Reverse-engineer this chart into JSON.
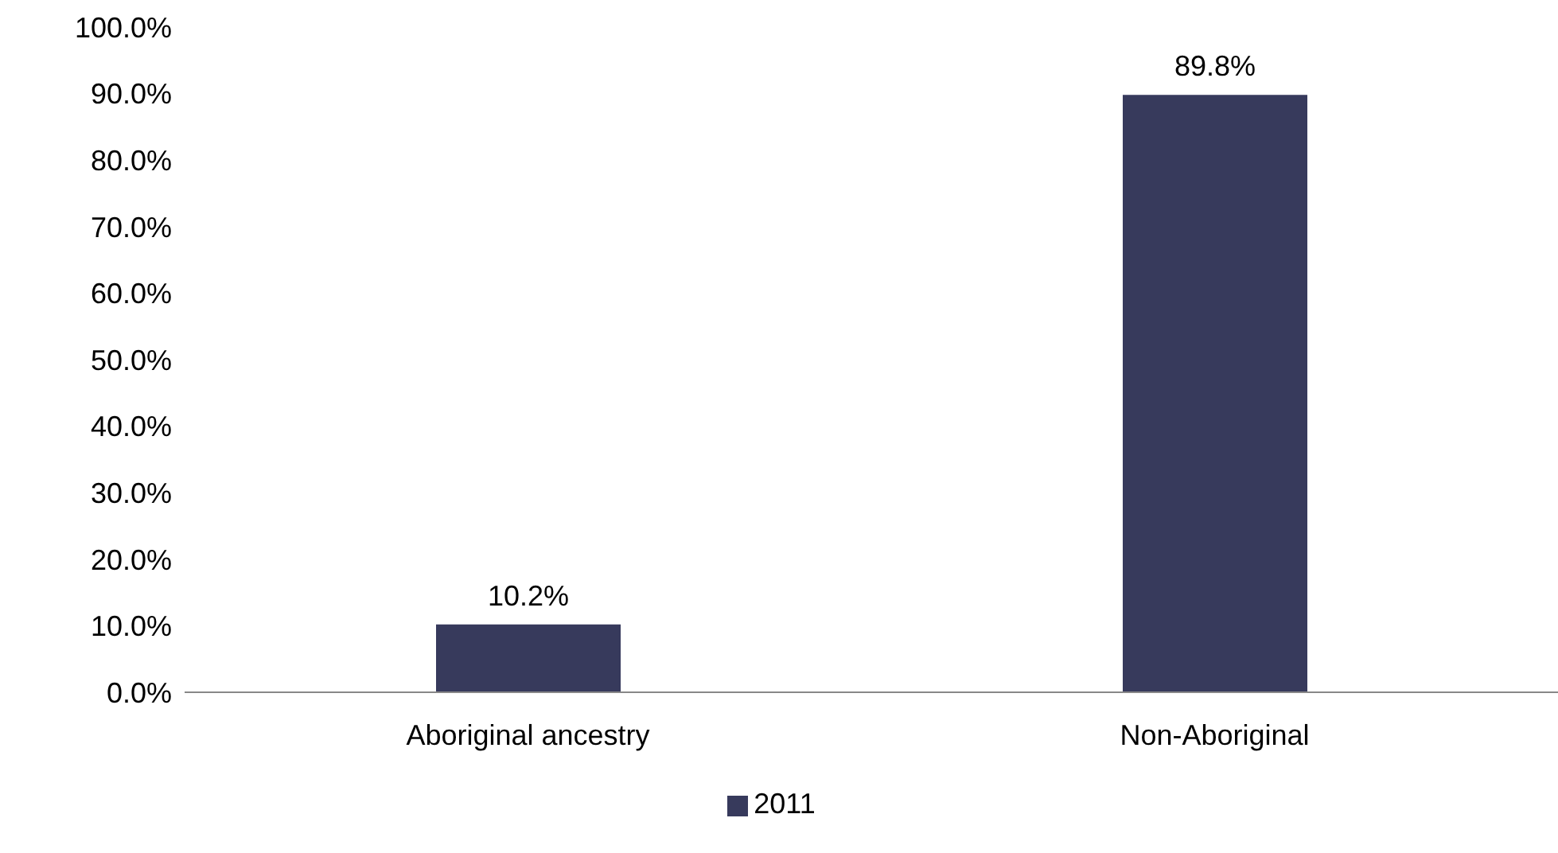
{
  "chart_data": {
    "type": "bar",
    "categories": [
      "Aboriginal ancestry",
      "Non-Aboriginal"
    ],
    "series": [
      {
        "name": "2011",
        "color": "#373a5c",
        "values": [
          10.2,
          89.8
        ],
        "value_labels": [
          "10.2%",
          "89.8%"
        ]
      }
    ],
    "ylim": [
      0,
      100
    ],
    "yticks": [
      {
        "value": 0,
        "label": "0.0%"
      },
      {
        "value": 10,
        "label": "10.0%"
      },
      {
        "value": 20,
        "label": "20.0%"
      },
      {
        "value": 30,
        "label": "30.0%"
      },
      {
        "value": 40,
        "label": "40.0%"
      },
      {
        "value": 50,
        "label": "50.0%"
      },
      {
        "value": 60,
        "label": "60.0%"
      },
      {
        "value": 70,
        "label": "70.0%"
      },
      {
        "value": 80,
        "label": "80.0%"
      },
      {
        "value": 90,
        "label": "90.0%"
      },
      {
        "value": 100,
        "label": "100.0%"
      }
    ],
    "grid": false,
    "legend": "bottom"
  }
}
